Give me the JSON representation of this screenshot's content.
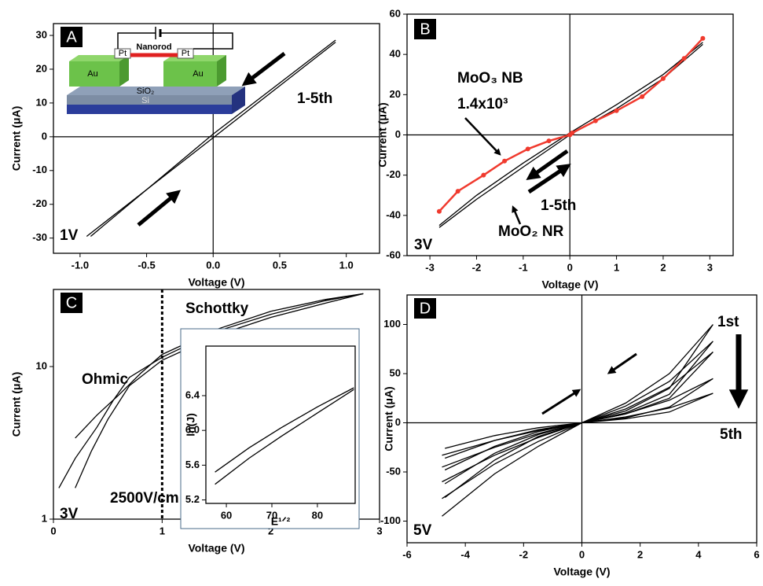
{
  "chart_data": [
    {
      "type": "line",
      "panel_label": "A",
      "xlabel": "Voltage (V)",
      "ylabel": "Current (μA)",
      "xlim": [
        -1.2,
        1.25
      ],
      "ylim": [
        -34.5,
        33.5
      ],
      "xticks": [
        {
          "value": -1,
          "label": "-1.0"
        },
        -0.5,
        {
          "value": 0,
          "label": "0.0"
        },
        0.5,
        {
          "value": 1,
          "label": "1.0"
        }
      ],
      "yticks": [
        -30,
        -20,
        -10,
        0,
        10,
        20,
        30
      ],
      "zero_lines": true,
      "series": [
        {
          "color": "#000000",
          "x": [
            -0.95,
            0,
            0.92
          ],
          "values": [
            -29.5,
            -0.3,
            28
          ]
        },
        {
          "color": "#000000",
          "x": [
            -0.92,
            0,
            0.92
          ],
          "values": [
            -29.5,
            0.8,
            28.6
          ]
        }
      ],
      "annotations": [
        "1-5th",
        "1V"
      ],
      "schematic_labels": [
        "Nanorod",
        "Pt",
        "Pt",
        "Au",
        "Au",
        "SiO₂",
        "Si"
      ]
    },
    {
      "type": "line",
      "panel_label": "B",
      "xlabel": "Voltage (V)",
      "ylabel": "Current (μA)",
      "xlim": [
        -3.49,
        3.5
      ],
      "ylim": [
        -60,
        60
      ],
      "xticks": [
        -3,
        -2,
        -1,
        0,
        1,
        2,
        3
      ],
      "yticks": [
        -60,
        -40,
        -20,
        0,
        20,
        40,
        60
      ],
      "zero_lines": true,
      "series": [
        {
          "color": "#000000",
          "x": [
            -2.8,
            -2,
            -1,
            0,
            1,
            2,
            2.85
          ],
          "values": [
            -46,
            -32,
            -16,
            0,
            13,
            28,
            45
          ]
        },
        {
          "color": "#000000",
          "x": [
            2.85,
            2,
            1,
            0,
            -1,
            -2,
            -2.8
          ],
          "values": [
            46,
            30,
            15,
            1,
            -14,
            -30,
            -45
          ]
        },
        {
          "color": "#f03a2e",
          "markers": true,
          "x": [
            -2.8,
            -2.4,
            -1.85,
            -1.4,
            -0.9,
            -0.45,
            0,
            0.05,
            0.55,
            1,
            1.55,
            2,
            2.45,
            2.85
          ],
          "values": [
            -38,
            -28,
            -20,
            -13,
            -7,
            -3,
            0,
            1,
            7,
            12,
            19,
            28,
            38,
            48
          ]
        }
      ],
      "annotations": [
        "MoO₃ NB",
        "1.4x10³",
        "1-5th",
        "MoO₂ NR",
        "3V"
      ]
    },
    {
      "type": "line",
      "panel_label": "C",
      "xlabel": "Voltage (V)",
      "ylabel": "Current (μA)",
      "xlim": [
        0,
        3
      ],
      "ylim": [
        1,
        32
      ],
      "yscale": "log",
      "xticks": [
        0,
        1,
        2,
        3
      ],
      "yticks": [
        1,
        10
      ],
      "vline": 1,
      "series": [
        {
          "color": "#000000",
          "x": [
            0.05,
            0.2,
            0.4,
            0.55,
            0.7,
            1,
            1.5,
            2,
            2.5,
            2.85
          ],
          "values": [
            1.6,
            2.5,
            4,
            6,
            8.5,
            11.5,
            17,
            22,
            27,
            30
          ]
        },
        {
          "color": "#000000",
          "x": [
            0.2,
            0.35,
            0.5,
            0.7,
            1,
            1.5,
            2,
            2.5,
            2.85
          ],
          "values": [
            1.6,
            2.8,
            4.5,
            7.5,
            11,
            16,
            21,
            26,
            30
          ]
        },
        {
          "color": "#000000",
          "x": [
            0.2,
            0.4,
            0.6,
            0.8,
            1,
            1.5,
            2,
            2.5,
            2.85
          ],
          "values": [
            3.4,
            4.8,
            6.5,
            9,
            12,
            17.5,
            23,
            27.5,
            30
          ]
        }
      ],
      "annotations": [
        "Ohmic",
        "Schottky",
        "3V",
        "2500V/cm"
      ],
      "inset": {
        "type": "line",
        "xlabel": "E¹ᐟ²",
        "ylabel": "ln(J)",
        "xlim": [
          55.5,
          88.3
        ],
        "ylim": [
          5.16,
          6.97
        ],
        "xticks": [
          60,
          70,
          80
        ],
        "yticks": [
          5.2,
          5.6,
          {
            "value": 6,
            "label": "6.0"
          },
          6.4
        ],
        "series": [
          {
            "color": "#000000",
            "x": [
              57.5,
              65,
              72,
              80,
              88
            ],
            "values": [
              5.52,
              5.8,
              6.03,
              6.27,
              6.49
            ]
          },
          {
            "color": "#000000",
            "x": [
              57.5,
              65,
              72,
              80,
              88
            ],
            "values": [
              5.38,
              5.68,
              5.93,
              6.2,
              6.47
            ]
          }
        ]
      }
    },
    {
      "type": "line",
      "panel_label": "D",
      "xlabel": "Voltage (V)",
      "ylabel": "Current (μA)",
      "xlim": [
        -6,
        6
      ],
      "ylim": [
        -122,
        130
      ],
      "xticks": [
        -6,
        -4,
        -2,
        0,
        2,
        4,
        6
      ],
      "yticks": [
        -100,
        -50,
        0,
        50,
        100
      ],
      "zero_lines": true,
      "series": [
        {
          "color": "#000000",
          "x": [
            -4.8,
            -3,
            -1.5,
            0,
            1.5,
            3,
            4.5,
            3,
            1.5,
            0,
            -1.5,
            -3,
            -4.7
          ],
          "values": [
            -95,
            -52,
            -24,
            0,
            20,
            50,
            100,
            35,
            12,
            0,
            -14,
            -38,
            -76
          ]
        },
        {
          "color": "#000000",
          "x": [
            -4.8,
            -3,
            -1.5,
            0,
            1.5,
            3,
            4.5,
            3,
            1.5,
            0,
            -1.5,
            -3,
            -4.7
          ],
          "values": [
            -77,
            -42,
            -19,
            0,
            17,
            42,
            83,
            29,
            10,
            0,
            -12,
            -31,
            -62
          ]
        },
        {
          "color": "#000000",
          "x": [
            -4.8,
            -3,
            -1.5,
            0,
            1.5,
            3,
            4.5,
            3,
            1.5,
            0,
            -1.5,
            -3,
            -4.7
          ],
          "values": [
            -60,
            -33,
            -15,
            0,
            14,
            36,
            72,
            25,
            9,
            0,
            -9,
            -24,
            -48
          ]
        },
        {
          "color": "#000000",
          "x": [
            -4.8,
            -3,
            -1.5,
            0,
            1.5,
            3,
            4.5,
            3,
            1.5,
            0,
            -1.5,
            -3,
            -4.7
          ],
          "values": [
            -45,
            -25,
            -11,
            0,
            9,
            23,
            45,
            16,
            5,
            0,
            -7,
            -18,
            -36
          ]
        },
        {
          "color": "#000000",
          "x": [
            -4.8,
            -3,
            -1.5,
            0,
            1.5,
            3,
            4.5,
            3,
            1.5,
            0,
            -1.5,
            -3,
            -4.7
          ],
          "values": [
            -33,
            -18,
            -8,
            0,
            6,
            15,
            30,
            11,
            4,
            0,
            -5,
            -13,
            -26
          ]
        }
      ],
      "annotations": [
        "1st",
        "5th",
        "5V"
      ]
    }
  ]
}
